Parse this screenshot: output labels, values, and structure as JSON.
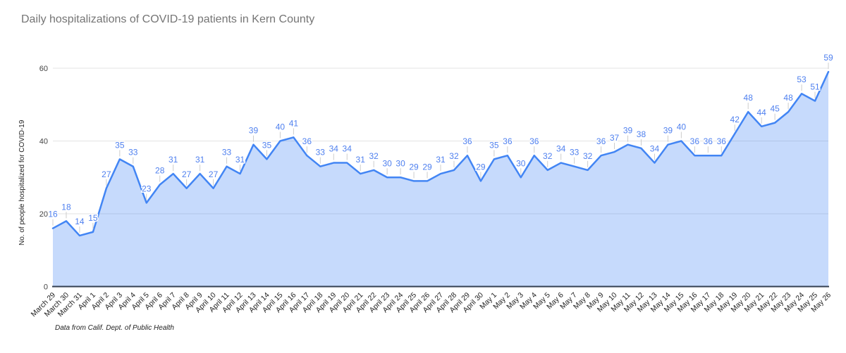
{
  "page": {
    "title": "Daily hospitalizations of COVID-19 patients in Kern County",
    "source_note": "Data from Calif. Dept. of Public Health"
  },
  "chart_data": {
    "type": "area",
    "title": "Daily hospitalizations of COVID-19 patients in Kern County",
    "xlabel": "",
    "ylabel": "No. of people hospitalized for COVID-19",
    "legend": "none",
    "grid": "horizontal",
    "data_labels": true,
    "ylim": [
      0,
      60
    ],
    "yticks": [
      0,
      20,
      40,
      60
    ],
    "categories": [
      "March 29",
      "March 30",
      "March 31",
      "April 1",
      "April 2",
      "April 3",
      "April 4",
      "April 5",
      "April 6",
      "April 7",
      "April 8",
      "April 9",
      "April 10",
      "April 11",
      "April 12",
      "April 13",
      "April 14",
      "April 15",
      "April 16",
      "April 17",
      "April 18",
      "April 19",
      "April 20",
      "April 21",
      "April 22",
      "April 23",
      "April 24",
      "April 25",
      "April 26",
      "April 27",
      "April 28",
      "April 29",
      "April 30",
      "May 1",
      "May 2",
      "May 3",
      "May 4",
      "May 5",
      "May 6",
      "May 7",
      "May 8",
      "May 9",
      "May 10",
      "May 11",
      "May 12",
      "May 13",
      "May 14",
      "May 15",
      "May 16",
      "May 17",
      "May 18",
      "May 19",
      "May 20",
      "May 21",
      "May 22",
      "May 23",
      "May 24",
      "May 25",
      "May 26"
    ],
    "values": [
      16,
      18,
      14,
      15,
      27,
      35,
      33,
      23,
      28,
      31,
      27,
      31,
      27,
      33,
      31,
      39,
      35,
      40,
      41,
      36,
      33,
      34,
      34,
      31,
      32,
      30,
      30,
      29,
      29,
      31,
      32,
      36,
      29,
      35,
      36,
      30,
      36,
      32,
      34,
      33,
      32,
      36,
      37,
      39,
      38,
      34,
      39,
      40,
      36,
      36,
      36,
      42,
      48,
      44,
      45,
      48,
      53,
      51,
      59
    ],
    "colors": {
      "line": "#4285f4",
      "area_fill": "rgba(66,133,244,0.3)",
      "data_label": "#4f80ef",
      "gridline": "#e3e3e3",
      "axis_line": "#333f50",
      "y_tick_text": "#444444",
      "x_tick_text": "#222222",
      "title_text": "#757575",
      "leader_line": "#cccccc"
    }
  }
}
